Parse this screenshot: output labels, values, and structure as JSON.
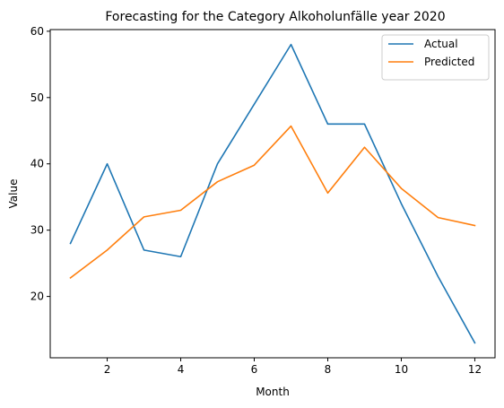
{
  "chart_data": {
    "type": "line",
    "title": "Forecasting for the Category Alkoholunfälle year 2020",
    "xlabel": "Month",
    "ylabel": "Value",
    "x": [
      1,
      2,
      3,
      4,
      5,
      6,
      7,
      8,
      9,
      10,
      11,
      12
    ],
    "xticks": [
      2,
      4,
      6,
      8,
      10,
      12
    ],
    "yticks": [
      20,
      30,
      40,
      50,
      60
    ],
    "xlim": [
      0.45,
      12.55
    ],
    "ylim": [
      10.75,
      60.25
    ],
    "grid": false,
    "legend_position": "top-right",
    "series": [
      {
        "name": "Actual",
        "color": "#1f77b4",
        "values": [
          28,
          40,
          27,
          26,
          40,
          49,
          58,
          46,
          46,
          34,
          23,
          13
        ]
      },
      {
        "name": "Predicted",
        "color": "#ff7f0e",
        "values": [
          22.8,
          27.0,
          32.0,
          33.0,
          37.3,
          39.8,
          45.7,
          35.6,
          42.5,
          36.3,
          31.9,
          30.7
        ]
      }
    ]
  }
}
